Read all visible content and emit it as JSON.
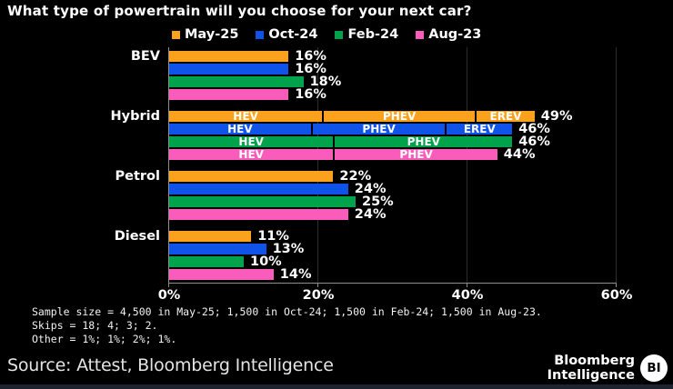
{
  "chart_data": {
    "type": "bar",
    "orientation": "horizontal",
    "title": "What type of powertrain will you choose for your next car?",
    "categories": [
      "BEV",
      "Hybrid",
      "Petrol",
      "Diesel"
    ],
    "xlim": [
      0,
      60
    ],
    "x_ticks": [
      {
        "value": 0,
        "label": "0%"
      },
      {
        "value": 20,
        "label": "20%"
      },
      {
        "value": 40,
        "label": "40%"
      },
      {
        "value": 60,
        "label": "60%"
      }
    ],
    "grid": "vertical",
    "legend_position": "top",
    "value_suffix": "%",
    "series": [
      {
        "name": "May-25",
        "color": "#FAA21D",
        "values": [
          16,
          49,
          22,
          11
        ],
        "stacks": {
          "Hybrid": [
            {
              "label": "HEV",
              "value": 20.5
            },
            {
              "label": "PHEV",
              "value": 20.5
            },
            {
              "label": "EREV",
              "value": 8
            }
          ]
        }
      },
      {
        "name": "Oct-24",
        "color": "#1053E8",
        "values": [
          16,
          46,
          24,
          13
        ],
        "stacks": {
          "Hybrid": [
            {
              "label": "HEV",
              "value": 19
            },
            {
              "label": "PHEV",
              "value": 18
            },
            {
              "label": "EREV",
              "value": 9
            }
          ]
        }
      },
      {
        "name": "Feb-24",
        "color": "#00A34C",
        "values": [
          18,
          46,
          25,
          10
        ],
        "stacks": {
          "Hybrid": [
            {
              "label": "HEV",
              "value": 22
            },
            {
              "label": "PHEV",
              "value": 24
            }
          ]
        }
      },
      {
        "name": "Aug-23",
        "color": "#FA5CBC",
        "values": [
          16,
          44,
          24,
          14
        ],
        "stacks": {
          "Hybrid": [
            {
              "label": "HEV",
              "value": 22
            },
            {
              "label": "PHEV",
              "value": 22
            }
          ]
        }
      }
    ]
  },
  "footnotes": [
    "Sample size = 4,500 in May-25; 1,500 in Oct-24; 1,500 in Feb-24; 1,500 in Aug-23.",
    "Skips = 18; 4; 3; 2.",
    "Other = 1%; 1%; 2%; 1%."
  ],
  "footer": {
    "source": "Source: Attest, Bloomberg Intelligence",
    "brand_line1": "Bloomberg",
    "brand_line2": "Intelligence",
    "brand_badge": "BI"
  }
}
